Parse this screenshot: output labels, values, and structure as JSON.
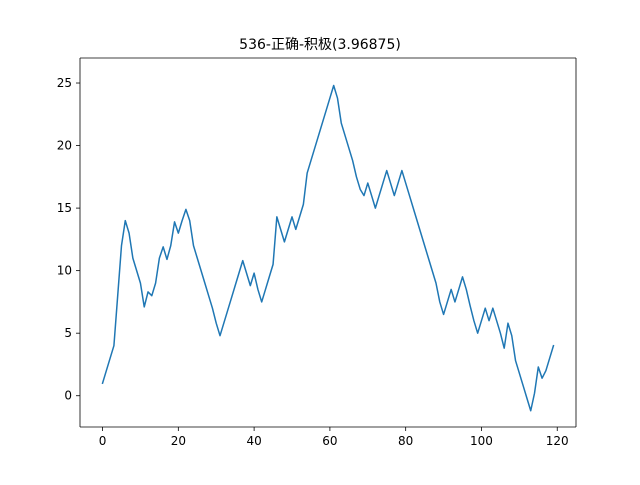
{
  "chart_data": {
    "type": "line",
    "title": "536-正确-积极(3.96875)",
    "xlabel": "",
    "ylabel": "",
    "xlim": [
      -5.95,
      124.95
    ],
    "ylim": [
      -2.5,
      27.0
    ],
    "x_ticks": [
      0,
      20,
      40,
      60,
      80,
      100,
      120
    ],
    "y_ticks": [
      0,
      5,
      10,
      15,
      20,
      25
    ],
    "x_tick_labels": [
      "0",
      "20",
      "40",
      "60",
      "80",
      "100",
      "120"
    ],
    "y_tick_labels": [
      "0",
      "5",
      "10",
      "15",
      "20",
      "25"
    ],
    "grid": false,
    "line_color": "#1f77b4",
    "series": [
      {
        "name": "",
        "x": [
          0,
          1,
          2,
          3,
          4,
          5,
          6,
          7,
          8,
          9,
          10,
          11,
          12,
          13,
          14,
          15,
          16,
          17,
          18,
          19,
          20,
          21,
          22,
          23,
          24,
          25,
          26,
          27,
          28,
          29,
          30,
          31,
          32,
          33,
          34,
          35,
          36,
          37,
          38,
          39,
          40,
          41,
          42,
          43,
          44,
          45,
          46,
          47,
          48,
          49,
          50,
          51,
          52,
          53,
          54,
          55,
          56,
          57,
          58,
          59,
          60,
          61,
          62,
          63,
          64,
          65,
          66,
          67,
          68,
          69,
          70,
          71,
          72,
          73,
          74,
          75,
          76,
          77,
          78,
          79,
          80,
          81,
          82,
          83,
          84,
          85,
          86,
          87,
          88,
          89,
          90,
          91,
          92,
          93,
          94,
          95,
          96,
          97,
          98,
          99,
          100,
          101,
          102,
          103,
          104,
          105,
          106,
          107,
          108,
          109,
          110,
          111,
          112,
          113,
          114,
          115,
          116,
          117,
          118,
          119
        ],
        "y": [
          1.0,
          2.0,
          3.0,
          4.0,
          8.0,
          12.0,
          14.0,
          13.0,
          11.0,
          10.0,
          9.0,
          7.1,
          8.3,
          8.0,
          9.0,
          11.0,
          11.9,
          10.9,
          12.0,
          13.9,
          13.0,
          14.0,
          14.9,
          14.0,
          12.0,
          11.0,
          10.0,
          9.0,
          8.0,
          7.0,
          5.8,
          4.8,
          5.8,
          6.8,
          7.8,
          8.8,
          9.8,
          10.8,
          9.8,
          8.8,
          9.8,
          8.5,
          7.5,
          8.5,
          9.5,
          10.5,
          14.3,
          13.3,
          12.3,
          13.3,
          14.3,
          13.3,
          14.3,
          15.3,
          17.8,
          18.8,
          19.8,
          20.8,
          21.8,
          22.8,
          23.8,
          24.8,
          23.8,
          21.8,
          20.8,
          19.8,
          18.8,
          17.5,
          16.5,
          16.0,
          17.0,
          16.0,
          15.0,
          16.0,
          17.0,
          18.0,
          17.0,
          16.0,
          17.0,
          18.0,
          17.0,
          16.0,
          15.0,
          14.0,
          13.0,
          12.0,
          11.0,
          10.0,
          9.0,
          7.5,
          6.5,
          7.5,
          8.5,
          7.5,
          8.5,
          9.5,
          8.5,
          7.2,
          6.0,
          5.0,
          6.0,
          7.0,
          6.0,
          7.0,
          6.0,
          5.0,
          3.8,
          5.8,
          4.8,
          2.8,
          1.8,
          0.8,
          -0.2,
          -1.2,
          0.2,
          2.3,
          1.4,
          2.0,
          3.0,
          4.0
        ]
      }
    ]
  }
}
